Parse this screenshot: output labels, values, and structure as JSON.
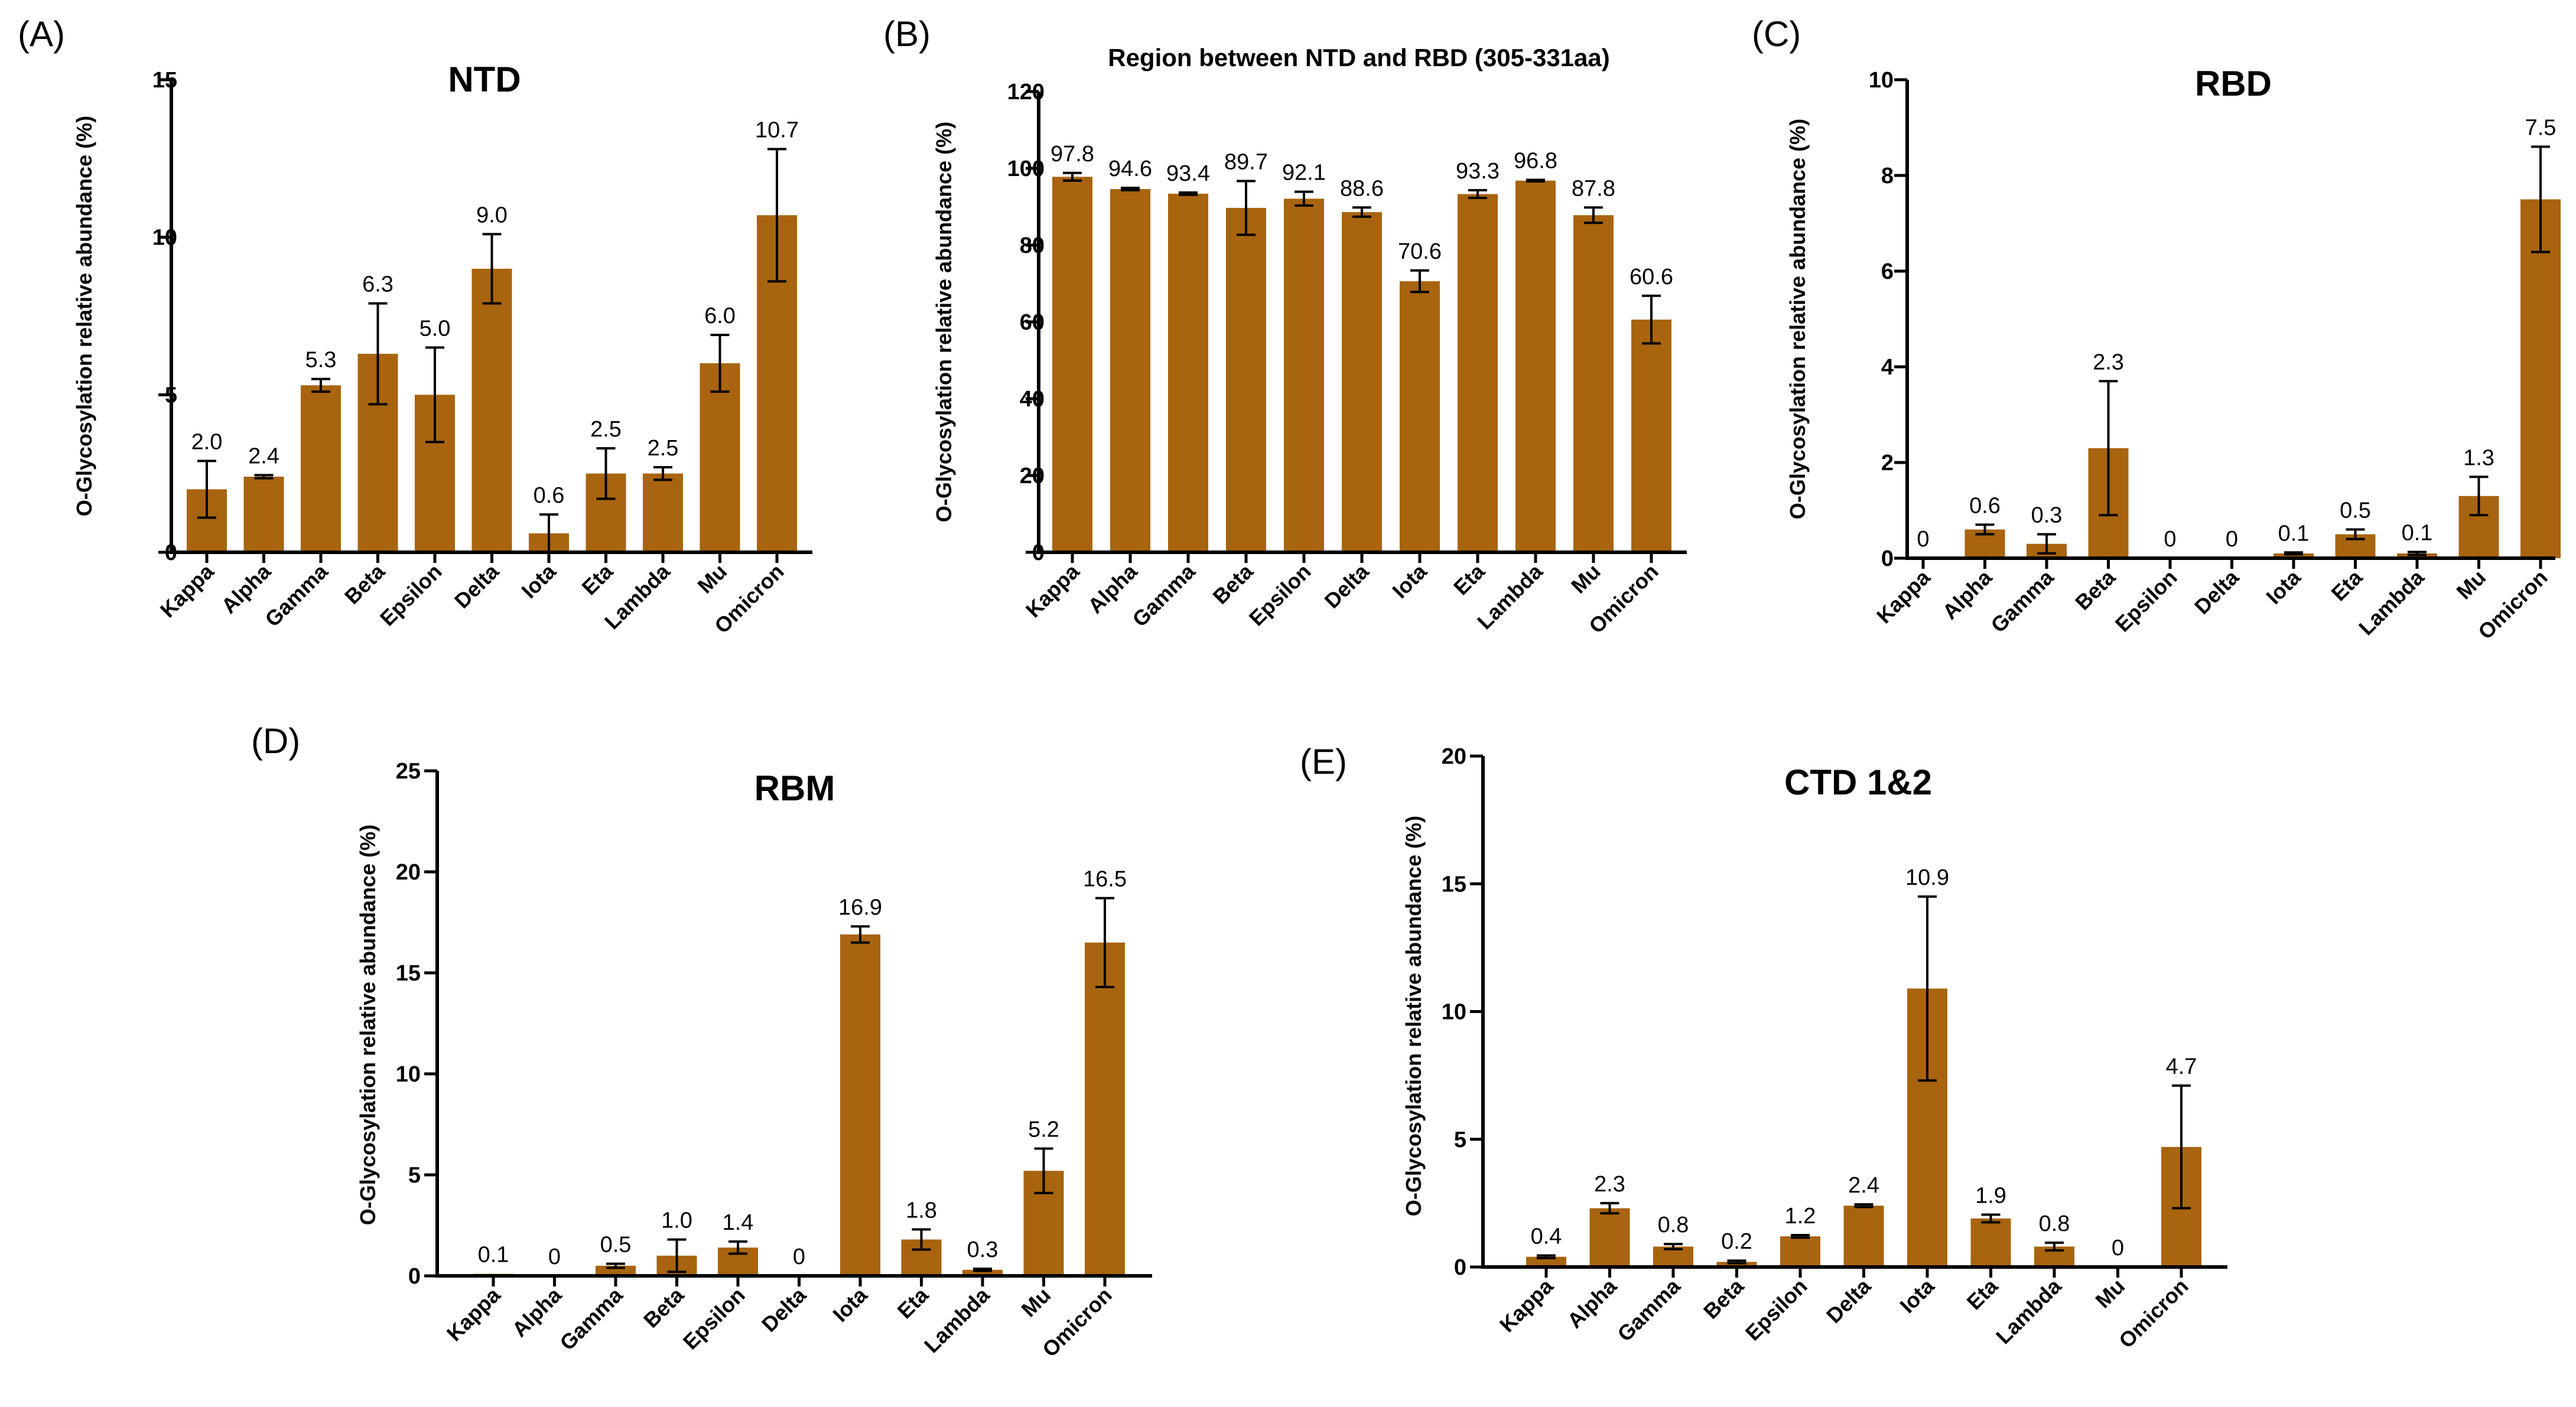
{
  "colors": {
    "bar": "#A8640F",
    "axis": "#000000"
  },
  "chart_data": [
    {
      "type": "bar",
      "panel_label": "(A)",
      "title": "NTD",
      "ylabel": "O-Glycosylation relative abundance (%)",
      "xlabel": "",
      "ylim": [
        0,
        15
      ],
      "yticks": [
        0,
        5,
        10,
        15
      ],
      "categories": [
        "Kappa",
        "Alpha",
        "Gamma",
        "Beta",
        "Epsilon",
        "Delta",
        "Iota",
        "Eta",
        "Lambda",
        "Mu",
        "Omicron"
      ],
      "values": [
        2.0,
        2.4,
        5.3,
        6.3,
        5.0,
        9.0,
        0.6,
        2.5,
        2.5,
        6.0,
        10.7
      ],
      "errors": [
        0.9,
        0.05,
        0.2,
        1.6,
        1.5,
        1.1,
        0.6,
        0.8,
        0.2,
        0.9,
        2.1
      ],
      "value_labels": [
        "2.0",
        "2.4",
        "5.3",
        "6.3",
        "5.0",
        "9.0",
        "0.6",
        "2.5",
        "2.5",
        "6.0",
        "10.7"
      ]
    },
    {
      "type": "bar",
      "panel_label": "(B)",
      "title": "Region between NTD and RBD (305-331aa)",
      "ylabel": "O-Glycosylation relative abundance (%)",
      "xlabel": "",
      "ylim": [
        0,
        120
      ],
      "yticks": [
        0,
        20,
        40,
        60,
        80,
        100,
        120
      ],
      "categories": [
        "Kappa",
        "Alpha",
        "Gamma",
        "Beta",
        "Epsilon",
        "Delta",
        "Iota",
        "Eta",
        "Lambda",
        "Mu",
        "Omicron"
      ],
      "values": [
        97.8,
        94.6,
        93.4,
        89.7,
        92.1,
        88.6,
        70.6,
        93.3,
        96.8,
        87.8,
        60.6
      ],
      "errors": [
        1.0,
        0.3,
        0.3,
        7.0,
        1.8,
        1.2,
        2.8,
        1.0,
        0.2,
        2.0,
        6.2
      ],
      "value_labels": [
        "97.8",
        "94.6",
        "93.4",
        "89.7",
        "92.1",
        "88.6",
        "70.6",
        "93.3",
        "96.8",
        "87.8",
        "60.6"
      ]
    },
    {
      "type": "bar",
      "panel_label": "(C)",
      "title": "RBD",
      "ylabel": "O-Glycosylation relative abundance (%)",
      "xlabel": "",
      "ylim": [
        0,
        10
      ],
      "yticks": [
        0,
        2,
        4,
        6,
        8,
        10
      ],
      "categories": [
        "Kappa",
        "Alpha",
        "Gamma",
        "Beta",
        "Epsilon",
        "Delta",
        "Iota",
        "Eta",
        "Lambda",
        "Mu",
        "Omicron"
      ],
      "values": [
        0,
        0.6,
        0.3,
        2.3,
        0,
        0,
        0.1,
        0.5,
        0.1,
        1.3,
        7.5
      ],
      "errors": [
        0,
        0.1,
        0.2,
        1.4,
        0,
        0,
        0.02,
        0.1,
        0.03,
        0.4,
        1.1
      ],
      "value_labels": [
        "0",
        "0.6",
        "0.3",
        "2.3",
        "0",
        "0",
        "0.1",
        "0.5",
        "0.1",
        "1.3",
        "7.5"
      ]
    },
    {
      "type": "bar",
      "panel_label": "(D)",
      "title": "RBM",
      "ylabel": "O-Glycosylation relative abundance (%)",
      "xlabel": "",
      "ylim": [
        0,
        25
      ],
      "yticks": [
        0,
        5,
        10,
        15,
        20,
        25
      ],
      "categories": [
        "Kappa",
        "Alpha",
        "Gamma",
        "Beta",
        "Epsilon",
        "Delta",
        "Iota",
        "Eta",
        "Lambda",
        "Mu",
        "Omicron"
      ],
      "values": [
        0.1,
        0,
        0.5,
        1.0,
        1.4,
        0,
        16.9,
        1.8,
        0.3,
        5.2,
        16.5
      ],
      "errors": [
        0,
        0,
        0.1,
        0.8,
        0.3,
        0,
        0.4,
        0.5,
        0.05,
        1.1,
        2.2
      ],
      "value_labels": [
        "0.1",
        "0",
        "0.5",
        "1.0",
        "1.4",
        "0",
        "16.9",
        "1.8",
        "0.3",
        "5.2",
        "16.5"
      ]
    },
    {
      "type": "bar",
      "panel_label": "(E)",
      "title": "CTD 1&2",
      "ylabel": "O-Glycosylation relative abundance (%)",
      "xlabel": "",
      "ylim": [
        0,
        20
      ],
      "yticks": [
        0,
        5,
        10,
        15,
        20
      ],
      "categories": [
        "Kappa",
        "Alpha",
        "Gamma",
        "Beta",
        "Epsilon",
        "Delta",
        "Iota",
        "Eta",
        "Lambda",
        "Mu",
        "Omicron"
      ],
      "values": [
        0.4,
        2.3,
        0.8,
        0.2,
        1.2,
        2.4,
        10.9,
        1.9,
        0.8,
        0,
        4.7
      ],
      "errors": [
        0.05,
        0.2,
        0.1,
        0.05,
        0.05,
        0.05,
        3.6,
        0.15,
        0.15,
        0,
        2.4
      ],
      "value_labels": [
        "0.4",
        "2.3",
        "0.8",
        "0.2",
        "1.2",
        "2.4",
        "10.9",
        "1.9",
        "0.8",
        "0",
        "4.7"
      ]
    }
  ]
}
